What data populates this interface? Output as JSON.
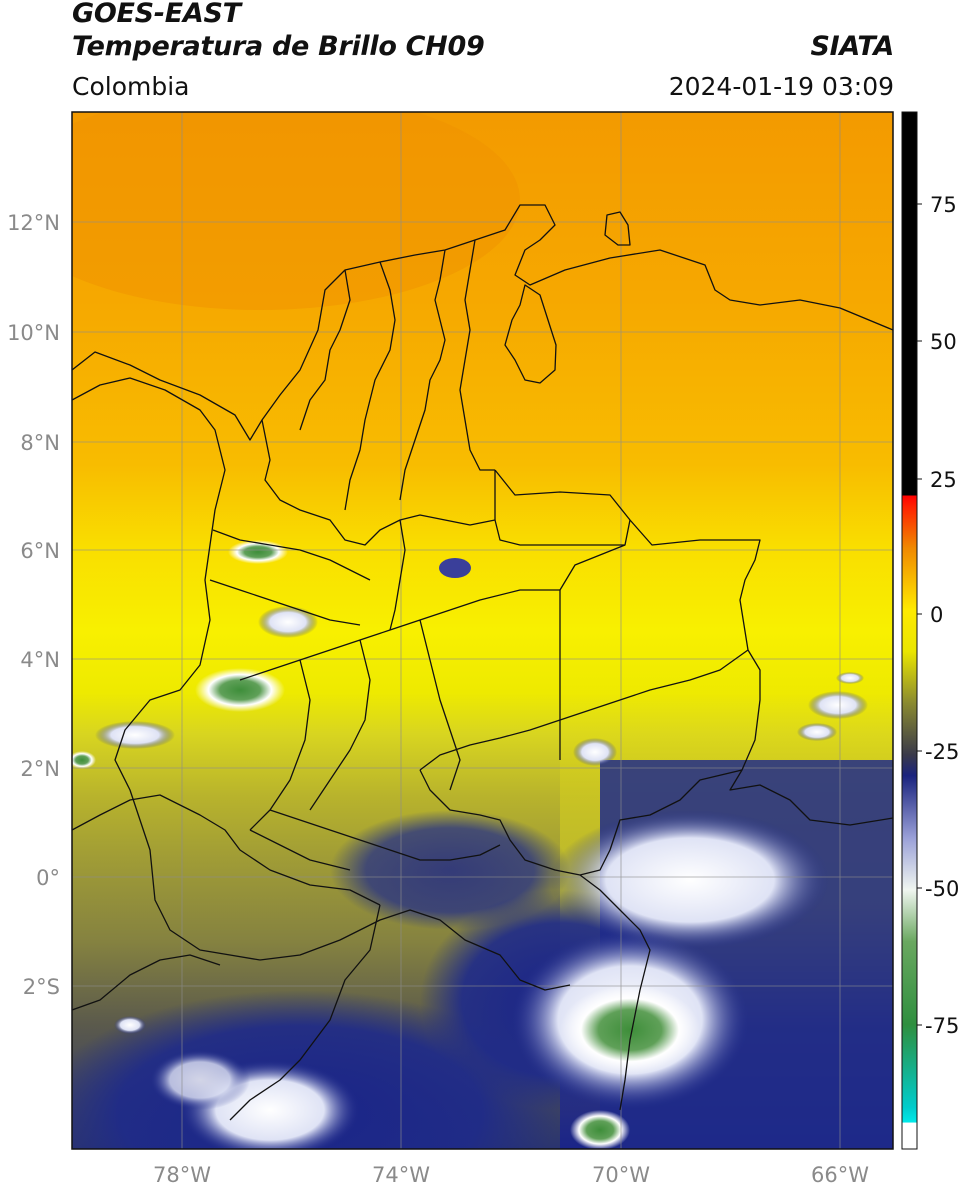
{
  "header": {
    "title_line1": "GOES-EAST",
    "title_line2": "Temperatura de Brillo CH09",
    "organization": "SIATA",
    "region": "Colombia",
    "datetime": "2024-01-19 03:09"
  },
  "map": {
    "lat_ticks": [
      "12°N",
      "10°N",
      "8°N",
      "6°N",
      "4°N",
      "2°N",
      "0°",
      "2°S"
    ],
    "lon_ticks": [
      "78°W",
      "74°W",
      "70°W",
      "66°W"
    ],
    "colors": {
      "warm_orange": "#f5a000",
      "orange": "#f8b000",
      "yellow": "#f7f200",
      "olive": "#a8a430",
      "dark_olive": "#6e6c3a",
      "navy": "#1e2a8a",
      "white": "#ffffff",
      "green": "#3e8e3a",
      "border": "#111111",
      "grid": "#888888"
    }
  },
  "colorbar": {
    "tick_labels": [
      "75",
      "50",
      "25",
      "0",
      "-25",
      "-50",
      "-75"
    ],
    "colors": [
      "#ffffff",
      "#00e0e0",
      "#2a9a3a",
      "#e8f0e8",
      "#1a237e",
      "#c8c800",
      "#ffef00",
      "#f08000",
      "#ff0000",
      "#000000"
    ]
  }
}
